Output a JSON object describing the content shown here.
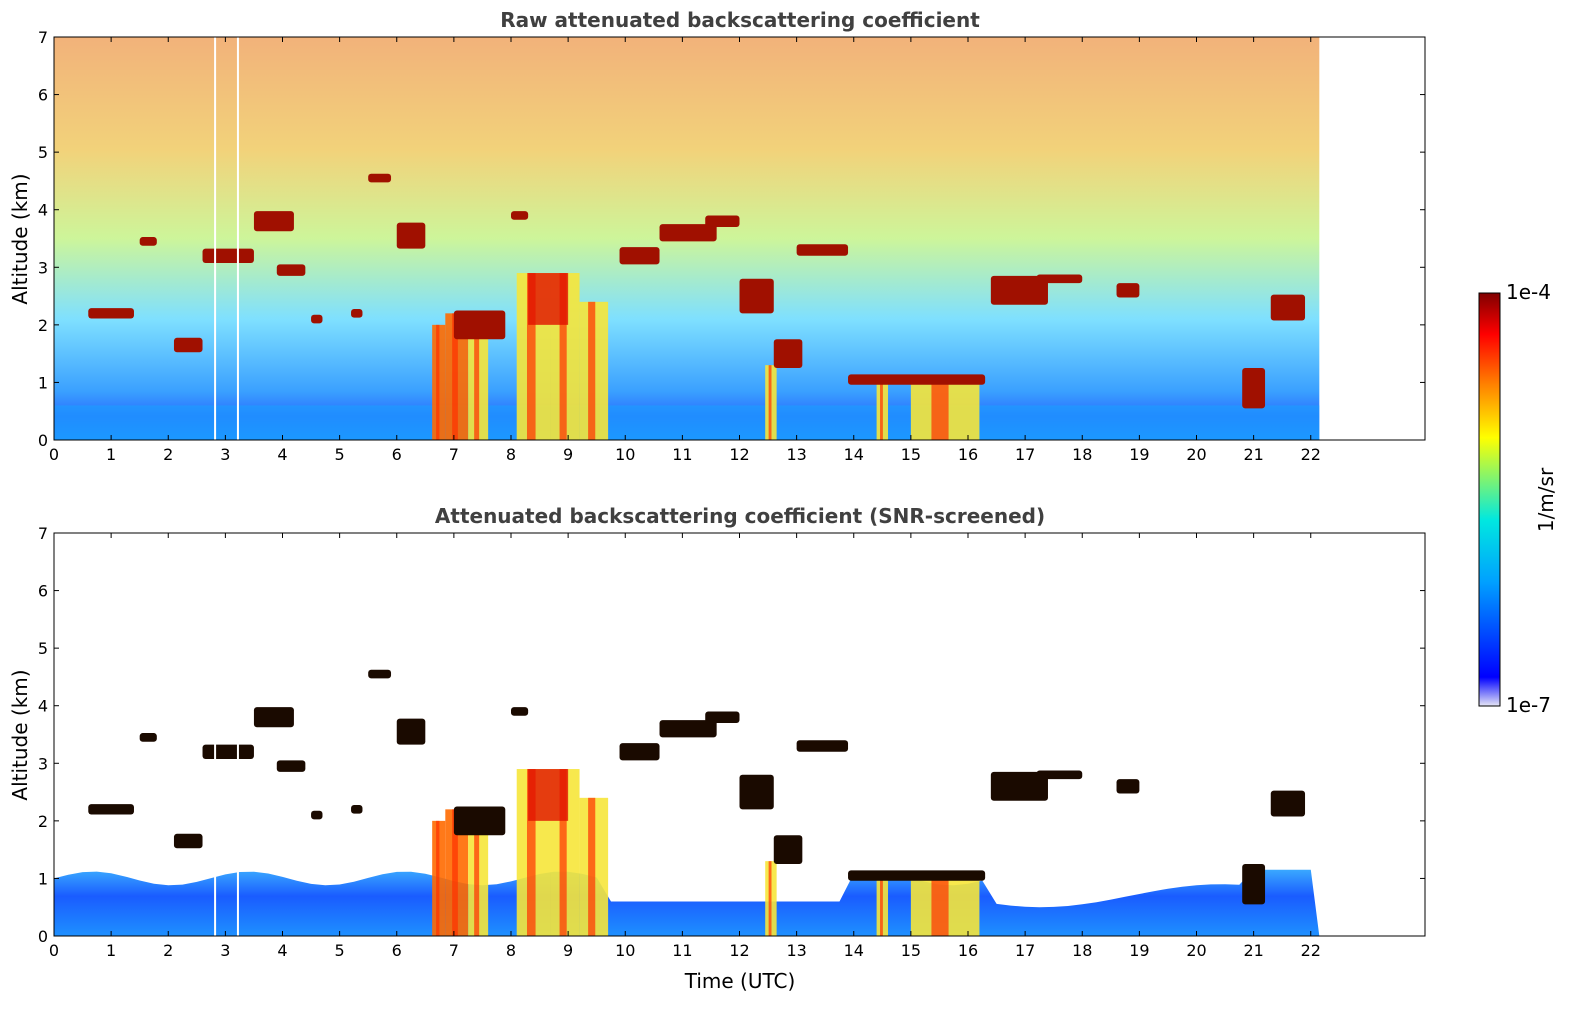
{
  "chart_data": [
    {
      "type": "heatmap",
      "title": "Raw attenuated backscattering coefficient",
      "xlabel": "",
      "ylabel": "Altitude (km)",
      "xlim": [
        0,
        24
      ],
      "ylim": [
        0,
        7
      ],
      "xticks": [
        "0",
        "1",
        "2",
        "3",
        "4",
        "5",
        "6",
        "7",
        "8",
        "9",
        "10",
        "11",
        "12",
        "13",
        "14",
        "15",
        "16",
        "17",
        "18",
        "19",
        "20",
        "21",
        "22"
      ],
      "yticks": [
        "0",
        "1",
        "2",
        "3",
        "4",
        "5",
        "6",
        "7"
      ],
      "data_end_time": 22.15,
      "screened": false
    },
    {
      "type": "heatmap",
      "title": "Attenuated backscattering coefficient (SNR-screened)",
      "xlabel": "Time (UTC)",
      "ylabel": "Altitude (km)",
      "xlim": [
        0,
        24
      ],
      "ylim": [
        0,
        7
      ],
      "xticks": [
        "0",
        "1",
        "2",
        "3",
        "4",
        "5",
        "6",
        "7",
        "8",
        "9",
        "10",
        "11",
        "12",
        "13",
        "14",
        "15",
        "16",
        "17",
        "18",
        "19",
        "20",
        "21",
        "22"
      ],
      "yticks": [
        "0",
        "1",
        "2",
        "3",
        "4",
        "5",
        "6",
        "7"
      ],
      "data_end_time": 22.15,
      "screened": true
    }
  ],
  "colorbar": {
    "label": "1/m/sr",
    "max_label": "1e-4",
    "min_label": "1e-7",
    "scale": "log",
    "colors": [
      "#e6e6f5",
      "#0000ff",
      "#00a0ff",
      "#00e8e0",
      "#ffff00",
      "#ff8000",
      "#ff0000",
      "#800000"
    ]
  }
}
